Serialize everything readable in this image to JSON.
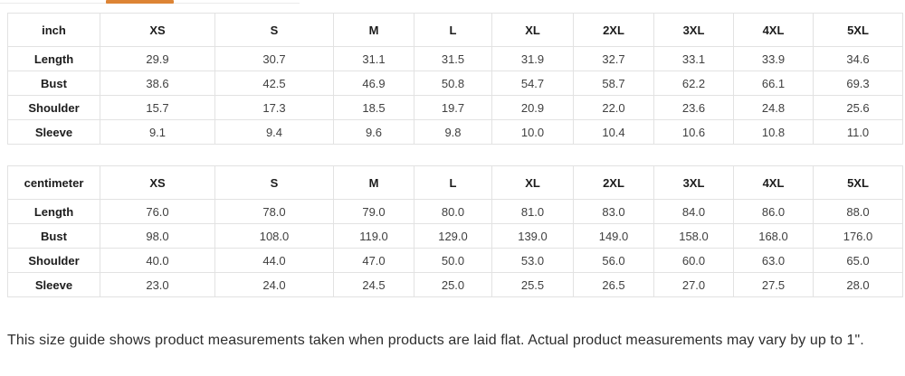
{
  "tabs": {
    "active_underline_color": "#DD8435"
  },
  "tables": [
    {
      "unit_header": "inch",
      "size_headers": [
        "XS",
        "S",
        "M",
        "L",
        "XL",
        "2XL",
        "3XL",
        "4XL",
        "5XL"
      ],
      "rows": [
        {
          "label": "Length",
          "values": [
            "29.9",
            "30.7",
            "31.1",
            "31.5",
            "31.9",
            "32.7",
            "33.1",
            "33.9",
            "34.6"
          ]
        },
        {
          "label": "Bust",
          "values": [
            "38.6",
            "42.5",
            "46.9",
            "50.8",
            "54.7",
            "58.7",
            "62.2",
            "66.1",
            "69.3"
          ]
        },
        {
          "label": "Shoulder",
          "values": [
            "15.7",
            "17.3",
            "18.5",
            "19.7",
            "20.9",
            "22.0",
            "23.6",
            "24.8",
            "25.6"
          ]
        },
        {
          "label": "Sleeve",
          "values": [
            "9.1",
            "9.4",
            "9.6",
            "9.8",
            "10.0",
            "10.4",
            "10.6",
            "10.8",
            "11.0"
          ]
        }
      ]
    },
    {
      "unit_header": "centimeter",
      "size_headers": [
        "XS",
        "S",
        "M",
        "L",
        "XL",
        "2XL",
        "3XL",
        "4XL",
        "5XL"
      ],
      "rows": [
        {
          "label": "Length",
          "values": [
            "76.0",
            "78.0",
            "79.0",
            "80.0",
            "81.0",
            "83.0",
            "84.0",
            "86.0",
            "88.0"
          ]
        },
        {
          "label": "Bust",
          "values": [
            "98.0",
            "108.0",
            "119.0",
            "129.0",
            "139.0",
            "149.0",
            "158.0",
            "168.0",
            "176.0"
          ]
        },
        {
          "label": "Shoulder",
          "values": [
            "40.0",
            "44.0",
            "47.0",
            "50.0",
            "53.0",
            "56.0",
            "60.0",
            "63.0",
            "65.0"
          ]
        },
        {
          "label": "Sleeve",
          "values": [
            "23.0",
            "24.0",
            "24.5",
            "25.0",
            "25.5",
            "26.5",
            "27.0",
            "27.5",
            "28.0"
          ]
        }
      ]
    }
  ],
  "footer": {
    "note": "This size guide shows product measurements taken when products are laid flat. Actual product measurements may vary by up to 1\"."
  }
}
